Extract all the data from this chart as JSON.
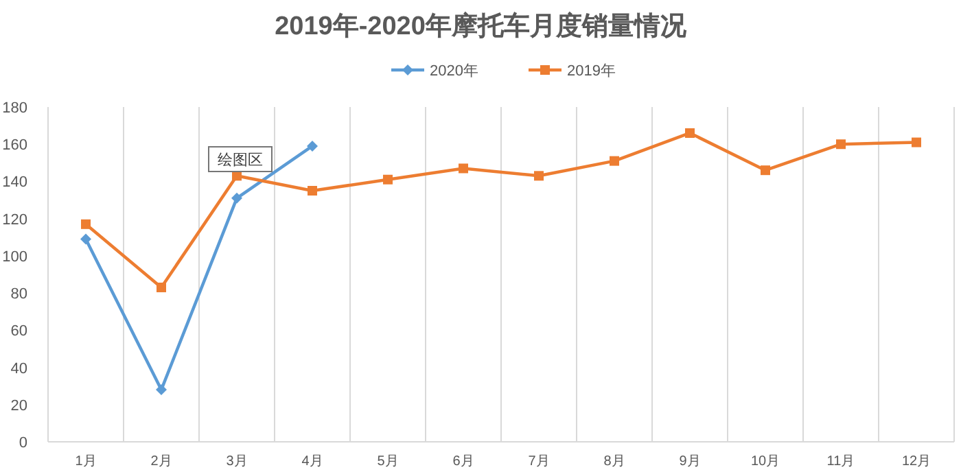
{
  "chart_data": {
    "type": "line",
    "title": "2019年-2020年摩托车月度销量情况",
    "categories": [
      "1月",
      "2月",
      "3月",
      "4月",
      "5月",
      "6月",
      "7月",
      "8月",
      "9月",
      "10月",
      "11月",
      "12月"
    ],
    "series": [
      {
        "name": "2020年",
        "color": "#5b9bd5",
        "marker": "diamond",
        "values": [
          109,
          28,
          131,
          159,
          null,
          null,
          null,
          null,
          null,
          null,
          null,
          null
        ]
      },
      {
        "name": "2019年",
        "color": "#ed7d31",
        "marker": "square",
        "values": [
          117,
          83,
          143,
          135,
          141,
          147,
          143,
          151,
          166,
          146,
          160,
          161
        ]
      }
    ],
    "ylim": [
      0,
      180
    ],
    "yticks": [
      0,
      20,
      40,
      60,
      80,
      100,
      120,
      140,
      160,
      180
    ],
    "grid": "x",
    "legend": "top",
    "line_style": "solid",
    "annotations": [
      "绘图区"
    ]
  }
}
